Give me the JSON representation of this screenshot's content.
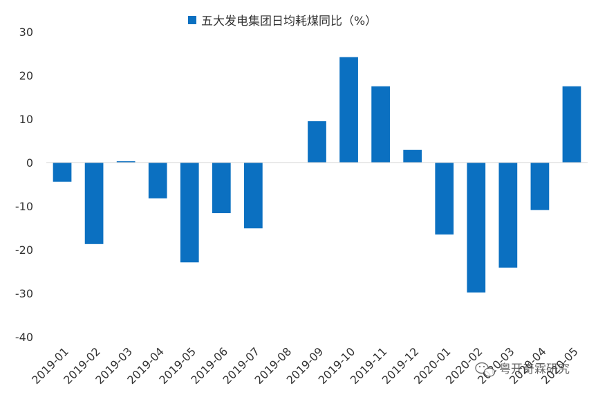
{
  "chart_data": {
    "type": "bar",
    "title": "",
    "xlabel": "",
    "ylabel": "",
    "ylim": [
      -40,
      30
    ],
    "yticks": [
      30,
      20,
      10,
      0,
      -10,
      -20,
      -30,
      -40
    ],
    "grid": false,
    "legend_position": "top-center",
    "categories": [
      "2019-01",
      "2019-02",
      "2019-03",
      "2019-04",
      "2019-05",
      "2019-06",
      "2019-07",
      "2019-08",
      "2019-09",
      "2019-10",
      "2019-11",
      "2019-12",
      "2020-01",
      "2020-02",
      "2020-03",
      "2020-04",
      "2020-05"
    ],
    "series": [
      {
        "name": "五大发电集团日均耗煤同比（%）",
        "color": "#0B70C1",
        "values": [
          -4.4,
          -18.7,
          0.3,
          -8.2,
          -22.9,
          -11.6,
          -15.1,
          0,
          9.5,
          24.2,
          17.5,
          2.9,
          -16.5,
          -29.8,
          -24.1,
          -10.9,
          17.5
        ]
      }
    ]
  },
  "watermark": {
    "text": "粤开奇霖研究",
    "icon": "wechat-icon"
  }
}
